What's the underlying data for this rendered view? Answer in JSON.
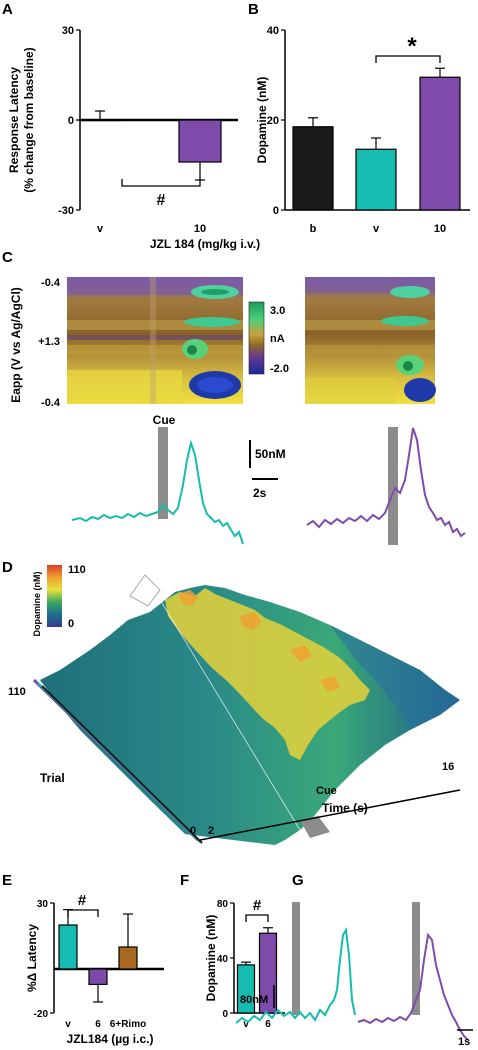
{
  "figure": {
    "panels": {
      "A": "A",
      "B": "B",
      "C": "C",
      "D": "D",
      "E": "E",
      "F": "F",
      "G": "G"
    },
    "colors": {
      "black": "#1a1a1a",
      "teal": "#17bcb0",
      "purple": "#7e4bab",
      "brown": "#a86a21",
      "gray": "#8c8c8c"
    },
    "shared_xlabel": "JZL 184 (mg/kg i.v.)"
  },
  "panelC": {
    "ylabel": "Eapp (V vs Ag/AgCl)",
    "yticks": [
      "-0.4",
      "+1.3",
      "-0.4"
    ],
    "colorbar_ticks": [
      "3.0",
      "nA",
      "-2.0"
    ],
    "cue_label": "Cue",
    "scale_y": "50nM",
    "scale_x": "2s"
  },
  "panelD": {
    "colorbar_title": "Dopamine (nM)",
    "colorbar_ticks": [
      "110",
      "0"
    ],
    "trial_label": "Trial",
    "trial_ticks": [
      "110",
      "0"
    ],
    "time_label": "Time (s)",
    "time_ticks": [
      "2",
      "16"
    ],
    "cue_label": "Cue"
  },
  "panelG": {
    "scale_y": "80nM",
    "scale_x": "1s"
  },
  "chart_data": [
    {
      "type": "bar",
      "panel": "A",
      "ylabel": "Response Latency\n(% change from baseline)",
      "xlabel": "JZL 184 (mg/kg i.v.)",
      "categories": [
        "v",
        "10"
      ],
      "values": [
        0,
        -14
      ],
      "errors": [
        3,
        6
      ],
      "colors": [
        "#ffffff",
        "#7e4bab"
      ],
      "ylim": [
        -30,
        30
      ],
      "yticks": [
        30,
        0,
        -30
      ],
      "significance": "#"
    },
    {
      "type": "bar",
      "panel": "B",
      "ylabel": "Dopamine (nM)",
      "xlabel": "JZL 184 (mg/kg i.v.)",
      "categories": [
        "b",
        "v",
        "10"
      ],
      "values": [
        18.5,
        13.5,
        29.5
      ],
      "errors": [
        2,
        2.5,
        2
      ],
      "colors": [
        "#1a1a1a",
        "#17bcb0",
        "#7e4bab"
      ],
      "ylim": [
        0,
        40
      ],
      "yticks": [
        40,
        20,
        0
      ],
      "significance": "*"
    },
    {
      "type": "bar",
      "panel": "E",
      "ylabel": "%Δ Latency",
      "xlabel": "JZL184 (µg i.c.)",
      "categories": [
        "v",
        "6",
        "6+Rimo"
      ],
      "values": [
        20,
        -7,
        10
      ],
      "errors": [
        7,
        8,
        15
      ],
      "colors": [
        "#17bcb0",
        "#7e4bab",
        "#a86a21"
      ],
      "ylim": [
        -20,
        30
      ],
      "yticks": [
        30,
        -20
      ],
      "significance": "#"
    },
    {
      "type": "bar",
      "panel": "F",
      "ylabel": "Dopamine (nM)",
      "xlabel": "",
      "categories": [
        "v",
        "6"
      ],
      "values": [
        35,
        58
      ],
      "errors": [
        2,
        4
      ],
      "colors": [
        "#17bcb0",
        "#7e4bab"
      ],
      "ylim": [
        0,
        80
      ],
      "yticks": [
        80,
        40,
        0
      ],
      "significance": "#"
    }
  ]
}
